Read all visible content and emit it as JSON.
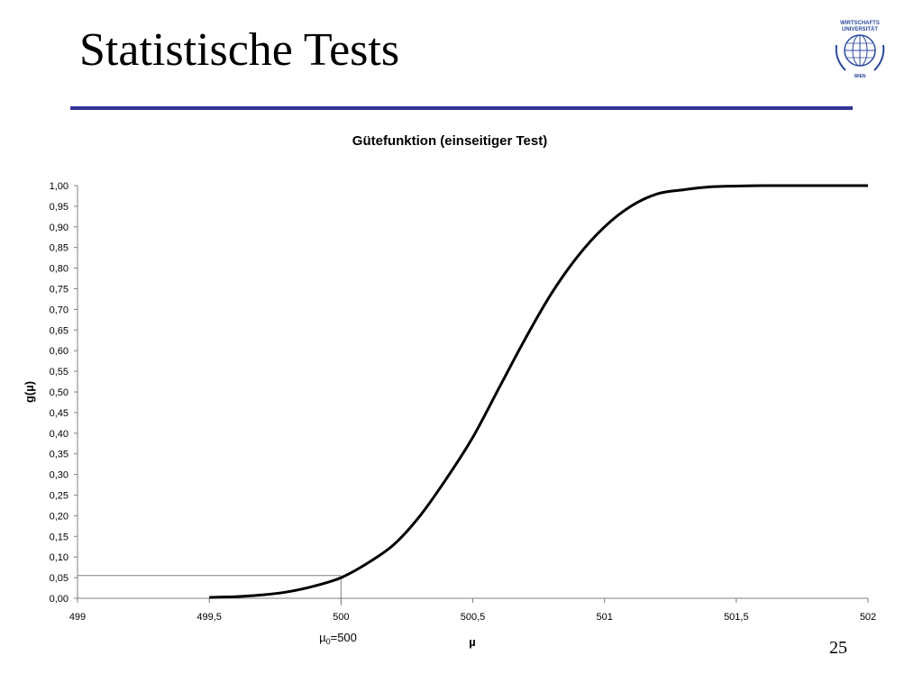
{
  "slide": {
    "title": "Statistische Tests",
    "page_number": "25",
    "accent_color": "#333399",
    "logo": {
      "icon": "globe-icon",
      "text_top_1": "WIRTSCHAFTS",
      "text_top_2": "UNIVERSITÄT",
      "text_bottom": "WIEN",
      "color": "#2b4a9c"
    }
  },
  "chart_data": {
    "type": "line",
    "title": "Gütefunktion (einseitiger Test)",
    "xlabel": "µ",
    "ylabel": "g(µ)",
    "xlim": [
      499,
      502
    ],
    "ylim": [
      0,
      1
    ],
    "x_ticks": [
      "499",
      "499,5",
      "500",
      "500,5",
      "501",
      "501,5",
      "502"
    ],
    "x_tick_values": [
      499,
      499.5,
      500,
      500.5,
      501,
      501.5,
      502
    ],
    "y_ticks": [
      "0,00",
      "0,05",
      "0,10",
      "0,15",
      "0,20",
      "0,25",
      "0,30",
      "0,35",
      "0,40",
      "0,45",
      "0,50",
      "0,55",
      "0,60",
      "0,65",
      "0,70",
      "0,75",
      "0,80",
      "0,85",
      "0,90",
      "0,95",
      "1,00"
    ],
    "y_tick_values": [
      0,
      0.05,
      0.1,
      0.15,
      0.2,
      0.25,
      0.3,
      0.35,
      0.4,
      0.45,
      0.5,
      0.55,
      0.6,
      0.65,
      0.7,
      0.75,
      0.8,
      0.85,
      0.9,
      0.95,
      1.0
    ],
    "grid": false,
    "legend": "none",
    "line_color": "#000000",
    "series": [
      {
        "x": [
          499.5,
          499.6,
          499.7,
          499.8,
          499.9,
          500.0,
          500.1,
          500.2,
          500.3,
          500.4,
          500.5,
          500.6,
          500.7,
          500.8,
          500.9,
          501.0,
          501.1,
          501.2,
          501.3,
          501.4,
          501.5,
          501.6,
          501.7,
          501.8,
          501.9,
          502.0
        ],
        "y": [
          0.002,
          0.004,
          0.008,
          0.016,
          0.03,
          0.05,
          0.085,
          0.13,
          0.2,
          0.29,
          0.39,
          0.51,
          0.63,
          0.74,
          0.83,
          0.9,
          0.95,
          0.98,
          0.99,
          0.997,
          0.999,
          1.0,
          1.0,
          1.0,
          1.0,
          1.0
        ]
      }
    ],
    "annotation": {
      "x": 500,
      "y": 0.055,
      "label_base": "µ",
      "label_sub": "0",
      "label_rest": "=500"
    }
  }
}
